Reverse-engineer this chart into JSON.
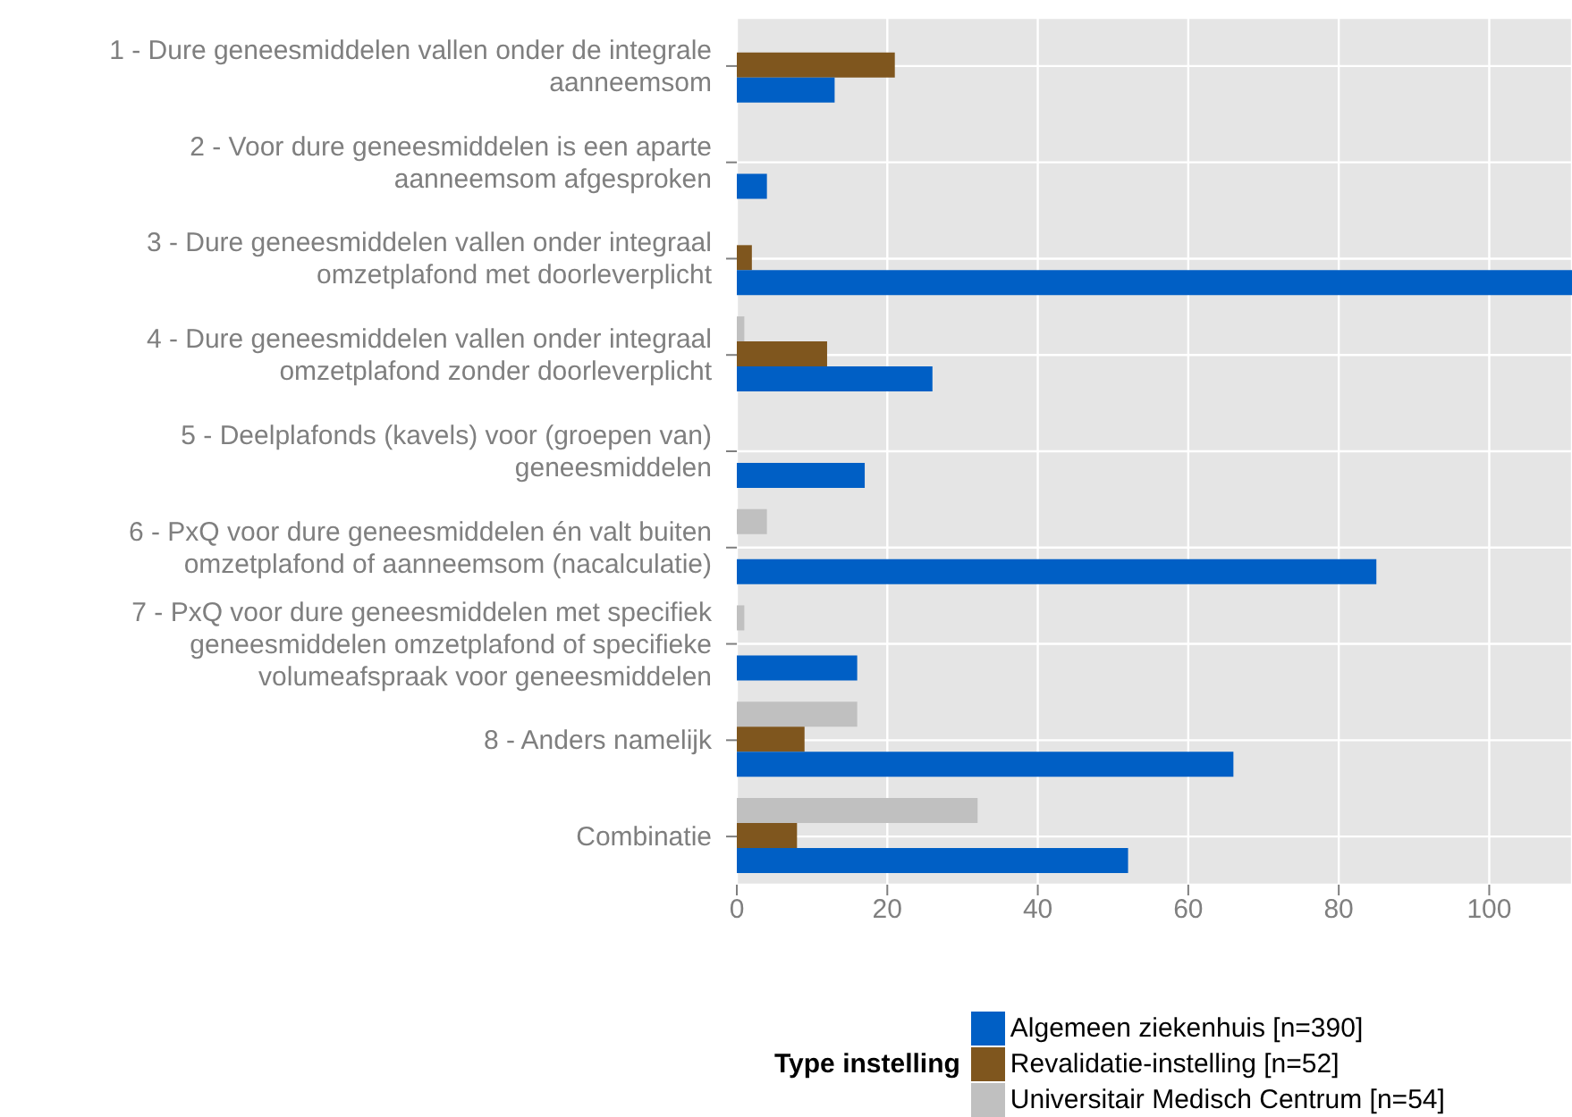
{
  "chart_data": {
    "type": "bar",
    "orientation": "horizontal",
    "categories": [
      "1 - Dure geneesmiddelen vallen onder de integrale aanneemsom",
      "2 - Voor dure geneesmiddelen is een aparte aanneemsom afgesproken",
      "3 - Dure geneesmiddelen vallen onder integraal omzetplafond met doorleverplicht",
      "4 - Dure geneesmiddelen vallen onder integraal omzetplafond zonder doorleverplicht",
      "5 - Deelplafonds (kavels) voor (groepen van) geneesmiddelen",
      "6 - PxQ voor dure geneesmiddelen én valt buiten omzetplafond of aanneemsom (nacalculatie)",
      "7 - PxQ voor dure geneesmiddelen met specifiek geneesmiddelen omzetplafond of specifieke volumeafspraak voor geneesmiddelen",
      "8 - Anders namelijk",
      "Combinatie"
    ],
    "series": [
      {
        "name": "Algemeen ziekenhuis [n=390]",
        "color": "#005fc5",
        "values": [
          13,
          4,
          111,
          26,
          17,
          85,
          16,
          66,
          52
        ]
      },
      {
        "name": "Revalidatie-instelling [n=52]",
        "color": "#7f561e",
        "values": [
          21,
          null,
          2,
          12,
          null,
          null,
          null,
          9,
          8
        ]
      },
      {
        "name": "Universitair Medisch Centrum [n=54]",
        "color": "#c0c0c0",
        "values": [
          null,
          null,
          null,
          1,
          null,
          4,
          1,
          16,
          32
        ]
      }
    ],
    "xlim": [
      0,
      111
    ],
    "xticks": [
      0,
      20,
      40,
      60,
      80,
      100
    ],
    "grid": true,
    "legend": "bottom",
    "legend_title": "Type instelling"
  }
}
